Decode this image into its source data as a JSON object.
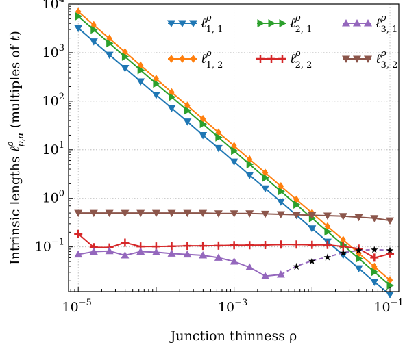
{
  "chart_data": {
    "type": "line",
    "xlabel": "Junction thinness ρ",
    "ylabel": "Intrinsic lengths ℓ^ρ_{p,α} (multiples of t)",
    "x_scale": "log",
    "y_scale": "log",
    "xlim": [
      7.5e-06,
      0.13
    ],
    "ylim": [
      0.012,
      10000
    ],
    "grid": true,
    "legend_location": "top-right",
    "x_ticks": [
      {
        "base": "10",
        "exp": "−5",
        "value": 1e-05
      },
      {
        "base": "10",
        "exp": "−3",
        "value": 0.001
      },
      {
        "base": "10",
        "exp": "−1",
        "value": 0.1
      }
    ],
    "y_ticks": [
      {
        "base": "10",
        "exp": "−1",
        "value": 0.1
      },
      {
        "base": "10",
        "exp": "0",
        "value": 1
      },
      {
        "base": "10",
        "exp": "1",
        "value": 10
      },
      {
        "base": "10",
        "exp": "2",
        "value": 100
      },
      {
        "base": "10",
        "exp": "3",
        "value": 1000
      },
      {
        "base": "10",
        "exp": "4",
        "value": 10000
      }
    ],
    "x": [
      1e-05,
      1.58e-05,
      2.51e-05,
      3.98e-05,
      6.31e-05,
      0.0001,
      0.000158,
      0.000251,
      0.000398,
      0.000631,
      0.001,
      0.00158,
      0.00251,
      0.00398,
      0.00631,
      0.01,
      0.0158,
      0.0251,
      0.0398,
      0.0631,
      0.1
    ],
    "series": [
      {
        "name": "ℓ^ρ_{1,1}",
        "label": {
          "sup": "ρ",
          "sub": "1, 1"
        },
        "color": "#1f77b4",
        "marker": "triangle-down",
        "values": [
          3200,
          1700,
          900,
          480,
          255,
          135,
          72,
          38,
          20,
          10.8,
          5.7,
          3.0,
          1.6,
          0.85,
          0.45,
          0.24,
          0.128,
          0.068,
          0.036,
          0.019,
          0.0105
        ]
      },
      {
        "name": "ℓ^ρ_{1,2}",
        "label": {
          "sup": "ρ",
          "sub": "1, 2"
        },
        "color": "#ff7f0e",
        "marker": "diamond",
        "values": [
          7000,
          3700,
          1950,
          1030,
          545,
          290,
          153,
          81,
          43,
          22.7,
          12.0,
          6.35,
          3.36,
          1.78,
          0.94,
          0.5,
          0.264,
          0.14,
          0.074,
          0.039,
          0.0207
        ]
      },
      {
        "name": "ℓ^ρ_{2,1}",
        "label": {
          "sup": "ρ",
          "sub": "2, 1"
        },
        "color": "#2ca02c",
        "marker": "triangle-right",
        "values": [
          5600,
          2960,
          1560,
          825,
          436,
          230,
          122,
          64.5,
          34,
          18,
          9.5,
          5.0,
          2.65,
          1.4,
          0.74,
          0.39,
          0.206,
          0.109,
          0.0577,
          0.0305,
          0.0161
        ]
      },
      {
        "name": "ℓ^ρ_{2,2}",
        "label": {
          "sup": "ρ",
          "sub": "2, 2"
        },
        "color": "#d62728",
        "marker": "plus",
        "values": [
          0.185,
          0.098,
          0.097,
          0.122,
          0.102,
          0.102,
          0.103,
          0.105,
          0.105,
          0.106,
          0.108,
          0.108,
          0.109,
          0.112,
          0.112,
          0.11,
          0.11,
          0.102,
          0.092,
          0.06,
          0.072
        ]
      },
      {
        "name": "ℓ^ρ_{3,1}",
        "label": {
          "sup": "ρ",
          "sub": "3, 1"
        },
        "color": "#9467bd",
        "marker": "triangle-up",
        "dashed_from_index": 13,
        "values": [
          0.07,
          0.08,
          0.082,
          0.067,
          0.08,
          0.078,
          0.073,
          0.07,
          0.067,
          0.06,
          0.05,
          0.038,
          0.025,
          0.027,
          0.04,
          0.052,
          0.062,
          0.076,
          0.085,
          0.088,
          0.085
        ]
      },
      {
        "name": "ℓ^ρ_{3,2}",
        "label": {
          "sup": "ρ",
          "sub": "3, 2"
        },
        "color": "#8c564b",
        "marker": "triangle-down",
        "values": [
          0.5,
          0.5,
          0.5,
          0.5,
          0.5,
          0.5,
          0.5,
          0.5,
          0.5,
          0.49,
          0.49,
          0.49,
          0.48,
          0.47,
          0.46,
          0.45,
          0.44,
          0.43,
          0.41,
          0.39,
          0.35
        ]
      }
    ]
  }
}
